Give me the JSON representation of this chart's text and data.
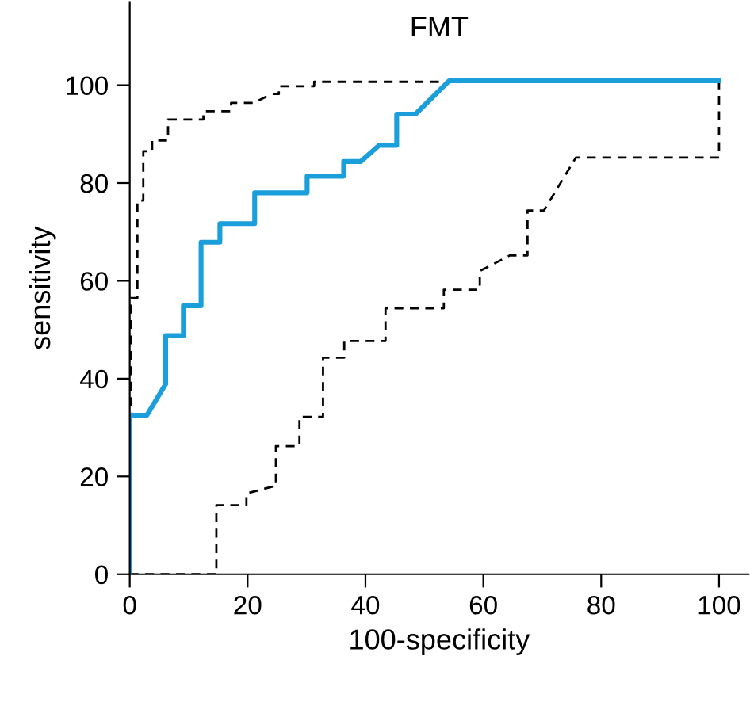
{
  "chart_data": {
    "type": "line",
    "title": "FMT",
    "xlabel": "100-specificity",
    "ylabel": "sensitivity",
    "xlim": [
      0,
      105
    ],
    "ylim": [
      0,
      117
    ],
    "xticks": [
      0,
      20,
      40,
      60,
      80,
      100
    ],
    "yticks": [
      0,
      20,
      40,
      60,
      80,
      100
    ],
    "grid": false,
    "legend": false,
    "marker": "none",
    "series": [
      {
        "color": "#000000",
        "line_style": "dashed",
        "x": [
          0,
          0.2,
          0.2,
          1.3,
          1.3,
          2.3,
          2.3,
          3.8,
          3.8,
          6.5,
          6.5,
          12.5,
          12.5,
          17.2,
          17.2,
          21,
          24.1,
          25.3,
          25.3,
          31.3,
          31.3,
          100
        ],
        "values": [
          0,
          0,
          56.5,
          56.5,
          76.4,
          76.4,
          86.5,
          86.5,
          88.7,
          88.7,
          93,
          93,
          94.7,
          94.7,
          96.4,
          96.4,
          98.2,
          98.2,
          99.8,
          99.8,
          100.7,
          100.7
        ]
      },
      {
        "color": "#000000",
        "line_style": "dashed",
        "x": [
          0,
          14.7,
          14.7,
          19.8,
          19.8,
          24.8,
          24.8,
          28.8,
          28.8,
          32.8,
          32.8,
          36.4,
          36.4,
          43.4,
          43.4,
          53.3,
          53.3,
          59.4,
          59.4,
          64.5,
          67.5,
          67.5,
          70.3,
          75.7,
          100,
          100
        ],
        "values": [
          0,
          0,
          14.1,
          14.1,
          16.5,
          18.1,
          26.2,
          26.2,
          32.2,
          32.2,
          44.3,
          44.3,
          47.7,
          47.7,
          54.4,
          54.4,
          58.2,
          58.2,
          62,
          65.2,
          65.2,
          74.4,
          74.4,
          85.2,
          85.2,
          100.7
        ]
      },
      {
        "color": "#1a9fdb",
        "line_style": "solid",
        "x": [
          0,
          0,
          2.9,
          6.1,
          6.1,
          9.1,
          9.1,
          12.1,
          12.1,
          15.3,
          15.3,
          21.2,
          21.2,
          30.1,
          30.1,
          36.3,
          36.3,
          39.2,
          42.3,
          45.3,
          45.3,
          48.5,
          54.2,
          100
        ],
        "values": [
          0,
          32.5,
          32.5,
          38.9,
          48.8,
          48.8,
          54.9,
          54.9,
          67.9,
          67.9,
          71.7,
          71.7,
          78,
          78,
          81.4,
          81.4,
          84.4,
          84.4,
          87.7,
          87.7,
          94.1,
          94.1,
          100.9,
          100.9
        ]
      }
    ]
  }
}
